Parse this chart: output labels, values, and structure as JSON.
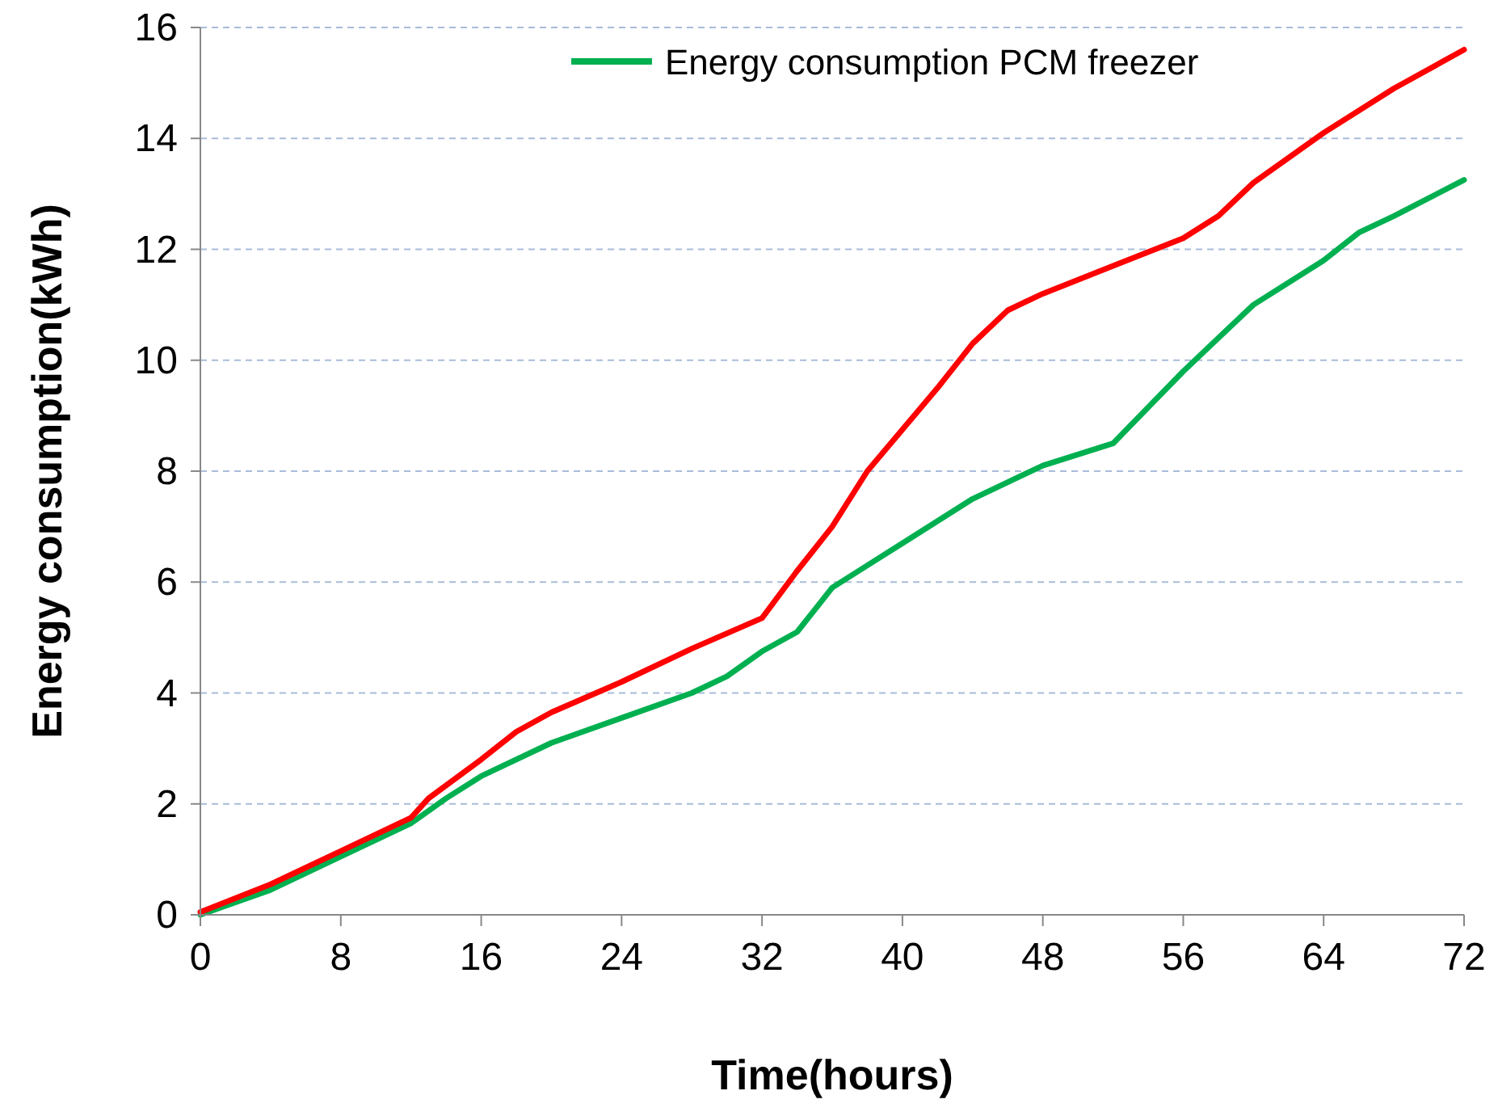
{
  "chart_data": {
    "type": "line",
    "xlabel": "Time(hours)",
    "ylabel": "Energy consumption(kWh)",
    "xlim": [
      0,
      72
    ],
    "xticks": [
      0,
      8,
      16,
      24,
      32,
      40,
      48,
      56,
      64,
      72
    ],
    "ylim": [
      0,
      16
    ],
    "yticks": [
      0,
      2,
      4,
      6,
      8,
      10,
      12,
      14,
      16
    ],
    "grid": "y",
    "legend": "top",
    "line_style": "solid",
    "series": [
      {
        "color": "#ff0000",
        "x": [
          0,
          4,
          8,
          12,
          13,
          16,
          18,
          20,
          24,
          28,
          32,
          34,
          36,
          38,
          40,
          42,
          44,
          46,
          48,
          52,
          56,
          58,
          60,
          64,
          68,
          72
        ],
        "values": [
          0.05,
          0.55,
          1.15,
          1.75,
          2.1,
          2.8,
          3.3,
          3.65,
          4.2,
          4.8,
          5.35,
          6.2,
          7.0,
          8.0,
          8.75,
          9.5,
          10.3,
          10.9,
          11.2,
          11.7,
          12.2,
          12.6,
          13.2,
          14.1,
          14.9,
          15.6
        ]
      },
      {
        "name": "Energy consumption PCM freezer",
        "color": "#00b050",
        "x": [
          0,
          4,
          8,
          12,
          14,
          16,
          20,
          24,
          28,
          30,
          32,
          34,
          36,
          38,
          40,
          44,
          48,
          52,
          56,
          58,
          60,
          64,
          66,
          68,
          72
        ],
        "values": [
          0.0,
          0.45,
          1.05,
          1.65,
          2.1,
          2.5,
          3.1,
          3.55,
          4.0,
          4.3,
          4.75,
          5.1,
          5.9,
          6.3,
          6.7,
          7.5,
          8.1,
          8.5,
          9.8,
          10.4,
          11.0,
          11.8,
          12.3,
          12.6,
          13.25
        ]
      }
    ]
  }
}
